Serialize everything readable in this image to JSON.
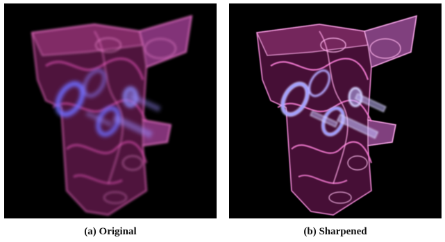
{
  "figure": {
    "panels": [
      {
        "caption": "(a) Original"
      },
      {
        "caption": "(b) Sharpened"
      }
    ],
    "colors": {
      "background": "#000000",
      "volume": "#d23aa0",
      "volume_edge": "#ff6fd2",
      "rings": "#7e7dff",
      "rings_sharp": "#c9c4ff"
    }
  }
}
